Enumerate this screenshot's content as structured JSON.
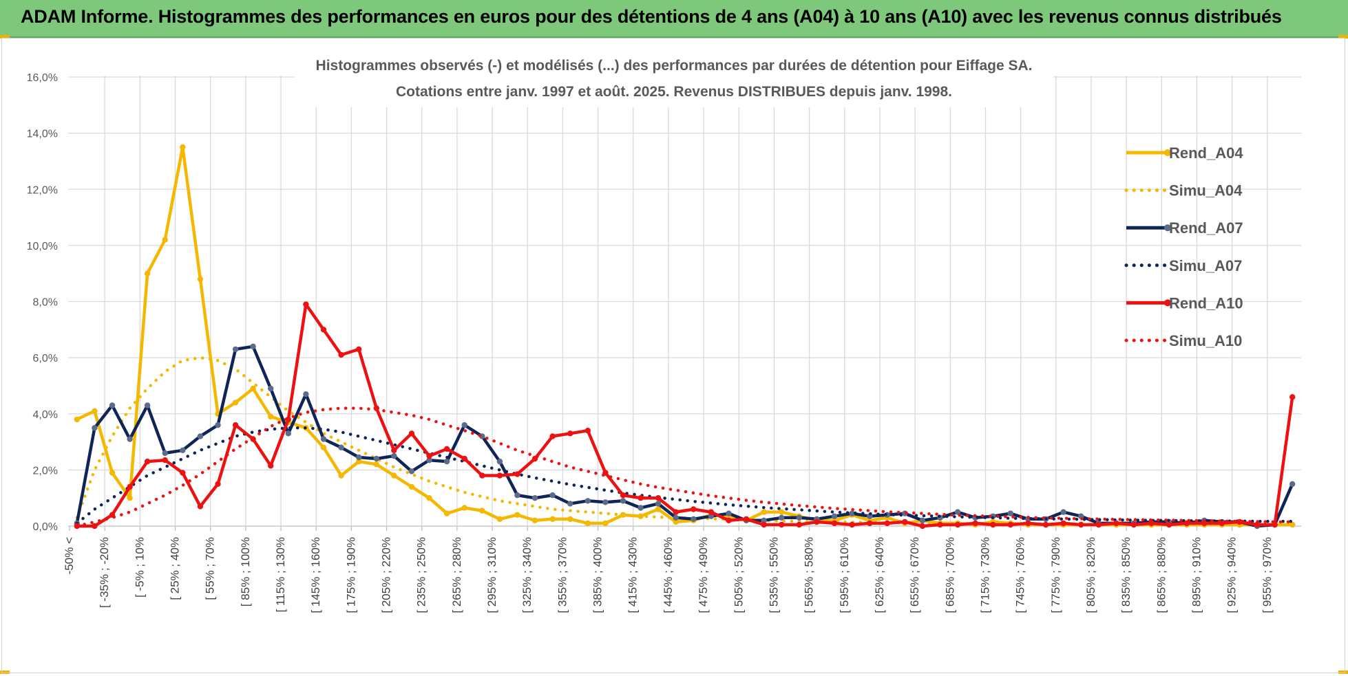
{
  "banner": {
    "title": "ADAM Informe. Histogrammes des performances en euros pour des détentions de 4 ans (A04) à 10 ans (A10) avec les revenus connus distribués",
    "color": "#7dc87a"
  },
  "chart_data": {
    "type": "line",
    "title_line1": "Histogrammes observés (-) et modélisés (...) des performances par durées de détention pour Eiffage SA.",
    "title_line2": "Cotations entre janv. 1997 et août. 2025. Revenus DISTRIBUES depuis janv. 1998.",
    "ylim": [
      0,
      16
    ],
    "y_ticks": [
      "0,0%",
      "2,0%",
      "4,0%",
      "6,0%",
      "8,0%",
      "10,0%",
      "12,0%",
      "14,0%",
      "16,0%"
    ],
    "grid": true,
    "legend_position": "right",
    "x_tick_labels": [
      "-50% <",
      "[ -35% ; -20%",
      "[ -5% ; 10%",
      "[ 25% ; 40%",
      "[ 55% ; 70%",
      "[ 85% ; 100%",
      "[ 115% ; 130%",
      "[ 145% ; 160%",
      "[ 175% ; 190%",
      "[ 205% ; 220%",
      "[ 235% ; 250%",
      "[ 265% ; 280%",
      "[ 295% ; 310%",
      "[ 325% ; 340%",
      "[ 355% ; 370%",
      "[ 385% ; 400%",
      "[ 415% ; 430%",
      "[ 445% ; 460%",
      "[ 475% ; 490%",
      "[ 505% ; 520%",
      "[ 535% ; 550%",
      "[ 565% ; 580%",
      "[ 595% ; 610%",
      "[ 625% ; 640%",
      "[ 655% ; 670%",
      "[ 685% ; 700%",
      "[ 715% ; 730%",
      "[ 745% ; 760%",
      "[ 775% ; 790%",
      "[ 805% ; 820%",
      "[ 835% ; 850%",
      "[ 865% ; 880%",
      "[ 895% ; 910%",
      "[ 925% ; 940%",
      "[ 955% ; 970%"
    ],
    "n_points": 70,
    "series": [
      {
        "name": "Rend_A04",
        "color": "#f5b800",
        "style": "solid",
        "values": [
          3.8,
          4.1,
          1.9,
          1.0,
          9.0,
          10.2,
          13.5,
          8.8,
          4.0,
          4.4,
          4.9,
          3.9,
          3.7,
          3.5,
          2.8,
          1.8,
          2.3,
          2.2,
          1.8,
          1.4,
          1.0,
          0.45,
          0.65,
          0.55,
          0.25,
          0.4,
          0.2,
          0.25,
          0.25,
          0.1,
          0.1,
          0.4,
          0.35,
          0.6,
          0.15,
          0.2,
          0.4,
          0.35,
          0.2,
          0.5,
          0.5,
          0.35,
          0.2,
          0.2,
          0.4,
          0.2,
          0.3,
          0.1,
          0.2,
          0.1,
          0.1,
          0.05,
          0.15,
          0.1,
          0.05,
          0.05,
          0.05,
          0.05,
          0.05,
          0.05,
          0.05,
          0.05,
          0.05,
          0.05,
          0.05,
          0.05,
          0.05,
          0.05,
          0.05,
          0.05
        ]
      },
      {
        "name": "Simu_A04",
        "color": "#f5b800",
        "style": "dotted",
        "values": [
          0.3,
          2.0,
          3.2,
          4.2,
          4.9,
          5.5,
          5.9,
          6.0,
          5.9,
          5.6,
          5.1,
          4.6,
          4.1,
          3.7,
          3.3,
          3.0,
          2.7,
          2.4,
          2.1,
          1.85,
          1.6,
          1.4,
          1.2,
          1.05,
          0.9,
          0.8,
          0.7,
          0.6,
          0.55,
          0.5,
          0.45,
          0.4,
          0.35,
          0.32,
          0.3,
          0.28,
          0.26,
          0.24,
          0.22,
          0.2,
          0.18,
          0.17,
          0.16,
          0.15,
          0.14,
          0.13,
          0.12,
          0.11,
          0.1,
          0.1,
          0.09,
          0.09,
          0.08,
          0.08,
          0.07,
          0.07,
          0.07,
          0.06,
          0.06,
          0.06,
          0.05,
          0.05,
          0.05,
          0.05,
          0.05,
          0.05,
          0.05,
          0.05,
          0.05,
          0.05
        ]
      },
      {
        "name": "Rend_A07",
        "color": "#0f2557",
        "style": "solid",
        "values": [
          0.1,
          3.5,
          4.3,
          3.1,
          4.3,
          2.6,
          2.7,
          3.2,
          3.6,
          6.3,
          6.4,
          4.9,
          3.3,
          4.7,
          3.1,
          2.8,
          2.45,
          2.4,
          2.5,
          1.95,
          2.35,
          2.3,
          3.6,
          3.2,
          2.3,
          1.1,
          1.0,
          1.1,
          0.8,
          0.9,
          0.85,
          0.9,
          0.65,
          0.8,
          0.3,
          0.25,
          0.35,
          0.45,
          0.2,
          0.2,
          0.3,
          0.3,
          0.25,
          0.35,
          0.45,
          0.35,
          0.4,
          0.45,
          0.2,
          0.3,
          0.5,
          0.3,
          0.35,
          0.45,
          0.25,
          0.25,
          0.5,
          0.35,
          0.1,
          0.1,
          0.1,
          0.15,
          0.15,
          0.1,
          0.2,
          0.15,
          0.15,
          0.0,
          0.05,
          1.5
        ]
      },
      {
        "name": "Simu_A07",
        "color": "#0f2557",
        "style": "dotted",
        "values": [
          0.1,
          0.6,
          1.0,
          1.4,
          1.8,
          2.1,
          2.4,
          2.7,
          2.95,
          3.2,
          3.35,
          3.45,
          3.5,
          3.5,
          3.45,
          3.35,
          3.2,
          3.05,
          2.9,
          2.75,
          2.6,
          2.45,
          2.3,
          2.15,
          2.0,
          1.85,
          1.72,
          1.6,
          1.48,
          1.38,
          1.28,
          1.18,
          1.1,
          1.02,
          0.95,
          0.88,
          0.82,
          0.76,
          0.71,
          0.66,
          0.62,
          0.58,
          0.54,
          0.5,
          0.47,
          0.44,
          0.41,
          0.39,
          0.37,
          0.35,
          0.33,
          0.31,
          0.3,
          0.28,
          0.27,
          0.26,
          0.25,
          0.24,
          0.23,
          0.22,
          0.21,
          0.2,
          0.2,
          0.19,
          0.19,
          0.18,
          0.18,
          0.17,
          0.17,
          0.17
        ]
      },
      {
        "name": "Rend_A10",
        "color": "#ee1111",
        "style": "solid",
        "values": [
          0.0,
          0.0,
          0.4,
          1.4,
          2.3,
          2.35,
          1.9,
          0.7,
          1.5,
          3.6,
          3.1,
          2.15,
          3.8,
          7.9,
          7.0,
          6.1,
          6.3,
          4.2,
          2.7,
          3.3,
          2.5,
          2.75,
          2.4,
          1.8,
          1.8,
          1.85,
          2.4,
          3.2,
          3.3,
          3.4,
          1.9,
          1.1,
          1.0,
          1.0,
          0.5,
          0.6,
          0.5,
          0.2,
          0.25,
          0.05,
          0.05,
          0.05,
          0.15,
          0.1,
          0.05,
          0.1,
          0.1,
          0.15,
          0.0,
          0.05,
          0.05,
          0.1,
          0.05,
          0.05,
          0.1,
          0.05,
          0.1,
          0.05,
          0.05,
          0.1,
          0.05,
          0.1,
          0.05,
          0.1,
          0.1,
          0.1,
          0.15,
          0.05,
          0.05,
          4.6
        ]
      },
      {
        "name": "Simu_A10",
        "color": "#ee1111",
        "style": "dotted",
        "values": [
          0.0,
          0.15,
          0.3,
          0.5,
          0.8,
          1.1,
          1.45,
          1.85,
          2.3,
          2.75,
          3.15,
          3.55,
          3.85,
          4.05,
          4.15,
          4.2,
          4.2,
          4.15,
          4.05,
          3.95,
          3.8,
          3.6,
          3.4,
          3.2,
          2.95,
          2.7,
          2.5,
          2.3,
          2.1,
          1.95,
          1.8,
          1.65,
          1.5,
          1.38,
          1.28,
          1.18,
          1.08,
          1.0,
          0.92,
          0.85,
          0.79,
          0.73,
          0.68,
          0.63,
          0.59,
          0.55,
          0.51,
          0.48,
          0.45,
          0.42,
          0.39,
          0.37,
          0.35,
          0.33,
          0.31,
          0.29,
          0.28,
          0.26,
          0.25,
          0.24,
          0.23,
          0.22,
          0.21,
          0.2,
          0.19,
          0.18,
          0.17,
          0.16,
          0.15,
          0.15
        ]
      }
    ]
  }
}
